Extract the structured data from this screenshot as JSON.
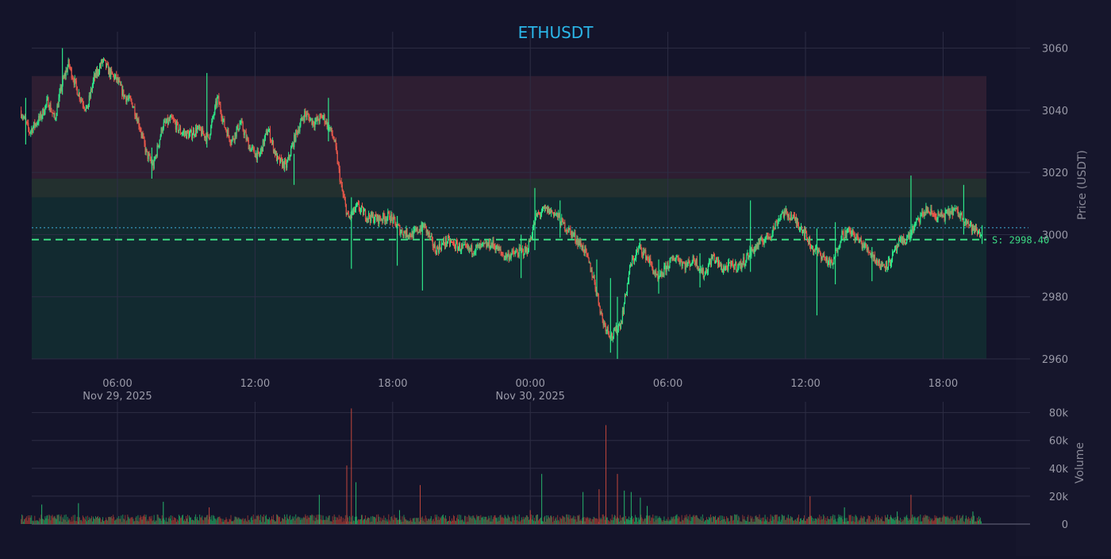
{
  "chart_data": {
    "type": "candlestick",
    "title": "ETHUSDT",
    "price_axis_label": "Price (USDT)",
    "volume_axis_label": "Volume",
    "price_ylim": [
      2960,
      3062
    ],
    "price_ticks": [
      2960,
      2980,
      3000,
      3020,
      3040,
      3060
    ],
    "volume_ylim": [
      0,
      85000
    ],
    "volume_ticks": [
      0,
      20000,
      40000,
      60000,
      80000
    ],
    "volume_tick_labels": [
      "0",
      "20k",
      "40k",
      "60k",
      "80k"
    ],
    "x_range_hours": [
      1.8,
      43.7
    ],
    "x_ticks": [
      {
        "hour": 6,
        "label": "06:00",
        "date": "Nov 29, 2025"
      },
      {
        "hour": 12,
        "label": "12:00",
        "date": ""
      },
      {
        "hour": 18,
        "label": "18:00",
        "date": ""
      },
      {
        "hour": 24,
        "label": "00:00",
        "date": "Nov 30, 2025"
      },
      {
        "hour": 30,
        "label": "06:00",
        "date": ""
      },
      {
        "hour": 36,
        "label": "12:00",
        "date": ""
      },
      {
        "hour": 42,
        "label": "18:00",
        "date": ""
      }
    ],
    "zones": [
      {
        "type": "resistance",
        "from": 3018,
        "to": 3051,
        "color": "#2e1e32"
      },
      {
        "type": "mid",
        "from": 3012,
        "to": 3018,
        "color": "#23302f"
      },
      {
        "type": "support",
        "from": 2960,
        "to": 3012,
        "color": "#122a30"
      }
    ],
    "support_level": {
      "value": 2998.4,
      "label": "S: 2998.40",
      "color": "#3ddc84"
    },
    "reference_level": {
      "value": 3002.2,
      "color": "#3aa0c8"
    },
    "up_color": "#2ee88a",
    "down_color": "#e8584a",
    "close_path": [
      [
        1.8,
        3040
      ],
      [
        2.2,
        3033
      ],
      [
        2.7,
        3038
      ],
      [
        3.0,
        3043
      ],
      [
        3.3,
        3037
      ],
      [
        3.6,
        3048
      ],
      [
        3.9,
        3055
      ],
      [
        4.3,
        3046
      ],
      [
        4.7,
        3040
      ],
      [
        5.0,
        3050
      ],
      [
        5.4,
        3056
      ],
      [
        5.7,
        3052
      ],
      [
        6.0,
        3050
      ],
      [
        6.3,
        3045
      ],
      [
        6.7,
        3042
      ],
      [
        7.0,
        3035
      ],
      [
        7.3,
        3026
      ],
      [
        7.6,
        3022
      ],
      [
        8.0,
        3035
      ],
      [
        8.4,
        3037
      ],
      [
        8.8,
        3033
      ],
      [
        9.2,
        3032
      ],
      [
        9.5,
        3034
      ],
      [
        10.0,
        3031
      ],
      [
        10.4,
        3044
      ],
      [
        10.7,
        3035
      ],
      [
        11.0,
        3030
      ],
      [
        11.4,
        3036
      ],
      [
        11.8,
        3028
      ],
      [
        12.2,
        3025
      ],
      [
        12.6,
        3034
      ],
      [
        13.0,
        3024
      ],
      [
        13.4,
        3022
      ],
      [
        13.8,
        3032
      ],
      [
        14.2,
        3039
      ],
      [
        14.6,
        3036
      ],
      [
        15.0,
        3038
      ],
      [
        15.3,
        3034
      ],
      [
        15.5,
        3030
      ],
      [
        15.8,
        3015
      ],
      [
        16.1,
        3005
      ],
      [
        16.5,
        3009
      ],
      [
        16.9,
        3006
      ],
      [
        17.4,
        3005
      ],
      [
        17.9,
        3006
      ],
      [
        18.4,
        3001
      ],
      [
        18.9,
        3000
      ],
      [
        19.4,
        3003
      ],
      [
        19.9,
        2995
      ],
      [
        20.4,
        2998
      ],
      [
        20.9,
        2996
      ],
      [
        21.4,
        2995
      ],
      [
        21.9,
        2996
      ],
      [
        22.4,
        2997
      ],
      [
        22.9,
        2993
      ],
      [
        23.4,
        2994
      ],
      [
        23.9,
        2995
      ],
      [
        24.3,
        3006
      ],
      [
        24.7,
        3008
      ],
      [
        25.1,
        3007
      ],
      [
        25.5,
        3003
      ],
      [
        25.9,
        3000
      ],
      [
        26.4,
        2995
      ],
      [
        26.8,
        2986
      ],
      [
        27.2,
        2972
      ],
      [
        27.6,
        2967
      ],
      [
        28.0,
        2972
      ],
      [
        28.4,
        2990
      ],
      [
        28.8,
        2996
      ],
      [
        29.2,
        2992
      ],
      [
        29.6,
        2985
      ],
      [
        30.0,
        2990
      ],
      [
        30.4,
        2993
      ],
      [
        30.8,
        2990
      ],
      [
        31.2,
        2992
      ],
      [
        31.6,
        2987
      ],
      [
        32.0,
        2993
      ],
      [
        32.4,
        2989
      ],
      [
        32.8,
        2990
      ],
      [
        33.2,
        2990
      ],
      [
        33.6,
        2994
      ],
      [
        34.0,
        2997
      ],
      [
        34.5,
        3000
      ],
      [
        35.0,
        3007
      ],
      [
        35.4,
        3006
      ],
      [
        35.9,
        3002
      ],
      [
        36.3,
        2996
      ],
      [
        36.8,
        2993
      ],
      [
        37.2,
        2990
      ],
      [
        37.6,
        3000
      ],
      [
        38.0,
        3001
      ],
      [
        38.5,
        2997
      ],
      [
        38.9,
        2994
      ],
      [
        39.3,
        2990
      ],
      [
        39.7,
        2991
      ],
      [
        40.1,
        2997
      ],
      [
        40.5,
        2999
      ],
      [
        40.9,
        3004
      ],
      [
        41.3,
        3008
      ],
      [
        41.7,
        3006
      ],
      [
        42.1,
        3006
      ],
      [
        42.5,
        3008
      ],
      [
        43.0,
        3005
      ],
      [
        43.3,
        3002
      ],
      [
        43.7,
        3000
      ]
    ],
    "spikes": [
      [
        2.0,
        3029,
        3044
      ],
      [
        3.6,
        3045,
        3060
      ],
      [
        7.5,
        3018,
        3028
      ],
      [
        9.9,
        3028,
        3052
      ],
      [
        13.7,
        3016,
        3026
      ],
      [
        15.2,
        3030,
        3044
      ],
      [
        16.2,
        2989,
        3012
      ],
      [
        18.2,
        2990,
        3006
      ],
      [
        19.3,
        2982,
        3004
      ],
      [
        23.6,
        2986,
        3000
      ],
      [
        24.2,
        2995,
        3015
      ],
      [
        25.3,
        2999,
        3011
      ],
      [
        26.9,
        2980,
        2992
      ],
      [
        27.5,
        2962,
        2986
      ],
      [
        27.8,
        2960,
        2980
      ],
      [
        29.6,
        2981,
        2992
      ],
      [
        31.4,
        2983,
        2994
      ],
      [
        33.6,
        2988,
        3011
      ],
      [
        36.5,
        2974,
        3002
      ],
      [
        37.3,
        2984,
        3004
      ],
      [
        38.9,
        2985,
        2996
      ],
      [
        40.6,
        2998,
        3019
      ],
      [
        42.9,
        3000,
        3016
      ],
      [
        43.7,
        2997,
        3003
      ]
    ],
    "volume_spikes": [
      [
        16.0,
        42000,
        "down"
      ],
      [
        16.2,
        83000,
        "down"
      ],
      [
        16.4,
        30000,
        "up"
      ],
      [
        18.3,
        10000,
        "up"
      ],
      [
        19.2,
        28000,
        "down"
      ],
      [
        24.0,
        10000,
        "down"
      ],
      [
        24.5,
        36000,
        "up"
      ],
      [
        26.3,
        23000,
        "up"
      ],
      [
        27.0,
        25000,
        "down"
      ],
      [
        27.3,
        71000,
        "down"
      ],
      [
        27.8,
        36000,
        "down"
      ],
      [
        28.1,
        24000,
        "up"
      ],
      [
        28.4,
        23000,
        "up"
      ],
      [
        28.8,
        19000,
        "up"
      ],
      [
        29.1,
        13000,
        "up"
      ],
      [
        36.2,
        20000,
        "down"
      ],
      [
        37.7,
        12000,
        "up"
      ],
      [
        40.0,
        9000,
        "up"
      ],
      [
        40.6,
        21000,
        "down"
      ],
      [
        43.3,
        9000,
        "up"
      ],
      [
        10.0,
        12000,
        "down"
      ],
      [
        8.0,
        16000,
        "up"
      ],
      [
        2.7,
        14000,
        "up"
      ],
      [
        4.3,
        15000,
        "up"
      ],
      [
        14.8,
        21000,
        "up"
      ]
    ]
  }
}
